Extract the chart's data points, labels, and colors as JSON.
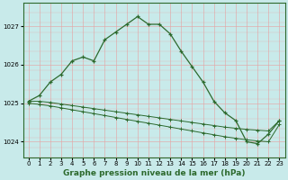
{
  "title": "Graphe pression niveau de la mer (hPa)",
  "bg_color": "#c8eaea",
  "grid_color_v": "#e8a0a0",
  "grid_color_h": "#e8a0a0",
  "line_color": "#2d6a2d",
  "spine_color": "#2d6a2d",
  "xlim": [
    -0.5,
    23.5
  ],
  "ylim": [
    1023.6,
    1027.6
  ],
  "yticks": [
    1024,
    1025,
    1026,
    1027
  ],
  "xticks": [
    0,
    1,
    2,
    3,
    4,
    5,
    6,
    7,
    8,
    9,
    10,
    11,
    12,
    13,
    14,
    15,
    16,
    17,
    18,
    19,
    20,
    21,
    22,
    23
  ],
  "line1_x": [
    0,
    1,
    2,
    3,
    4,
    5,
    6,
    7,
    8,
    9,
    10,
    11,
    12,
    13,
    14,
    15,
    16,
    17,
    18,
    19,
    20,
    21,
    22,
    23
  ],
  "line1_y": [
    1025.05,
    1025.2,
    1025.55,
    1025.75,
    1026.1,
    1026.2,
    1026.1,
    1026.65,
    1026.85,
    1027.05,
    1027.25,
    1027.05,
    1027.05,
    1026.8,
    1026.35,
    1025.95,
    1025.55,
    1025.05,
    1024.75,
    1024.55,
    1024.0,
    1023.95,
    1024.2,
    1024.55
  ],
  "line2_x": [
    0,
    1,
    2,
    3,
    4,
    5,
    6,
    7,
    8,
    9,
    10,
    11,
    12,
    13,
    14,
    15,
    16,
    17,
    18,
    19,
    20,
    21,
    22,
    23
  ],
  "line2_y": [
    1025.05,
    1025.05,
    1025.02,
    1024.98,
    1024.94,
    1024.9,
    1024.86,
    1024.82,
    1024.78,
    1024.74,
    1024.7,
    1024.66,
    1024.62,
    1024.58,
    1024.54,
    1024.5,
    1024.46,
    1024.42,
    1024.38,
    1024.35,
    1024.32,
    1024.3,
    1024.28,
    1024.55
  ],
  "line3_x": [
    0,
    1,
    2,
    3,
    4,
    5,
    6,
    7,
    8,
    9,
    10,
    11,
    12,
    13,
    14,
    15,
    16,
    17,
    18,
    19,
    20,
    21,
    22,
    23
  ],
  "line3_y": [
    1025.0,
    1024.97,
    1024.93,
    1024.88,
    1024.83,
    1024.78,
    1024.73,
    1024.68,
    1024.63,
    1024.58,
    1024.53,
    1024.48,
    1024.43,
    1024.38,
    1024.33,
    1024.28,
    1024.23,
    1024.18,
    1024.13,
    1024.09,
    1024.05,
    1024.02,
    1024.0,
    1024.45
  ],
  "title_fontsize": 6.5,
  "tick_fontsize": 5
}
